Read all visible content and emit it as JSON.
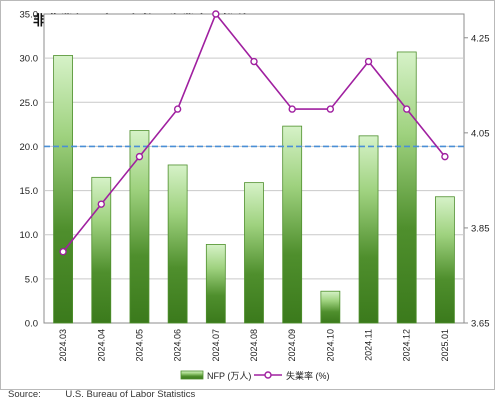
{
  "chart_data": {
    "type": "bar",
    "title": "非農業部門雇用者数と失業率の推移",
    "categories": [
      "2024.03",
      "2024.04",
      "2024.05",
      "2024.06",
      "2024.07",
      "2024.08",
      "2024.09",
      "2024.10",
      "2024.11",
      "2024.12",
      "2025.01"
    ],
    "series": [
      {
        "name": "NFP (万人)",
        "type": "bar",
        "axis": "left",
        "values": [
          30.3,
          16.5,
          21.8,
          17.9,
          8.9,
          15.9,
          22.3,
          3.6,
          21.2,
          30.7,
          14.3
        ]
      },
      {
        "name": "失業率 (%)",
        "type": "line",
        "axis": "right",
        "values": [
          3.8,
          3.9,
          4.0,
          4.1,
          4.3,
          4.2,
          4.1,
          4.1,
          4.2,
          4.1,
          4.0
        ]
      }
    ],
    "y_left": {
      "ylim": [
        0,
        35
      ],
      "ticks": [
        "0.0",
        "5.0",
        "10.0",
        "15.0",
        "20.0",
        "25.0",
        "30.0",
        "35.0"
      ]
    },
    "y_right": {
      "ylim": [
        3.65,
        4.3
      ],
      "ticks": [
        "3.65",
        "3.85",
        "4.05",
        "4.25"
      ]
    },
    "reference_line": {
      "axis": "left",
      "value": 20.0,
      "style": "dashed"
    },
    "grid": true,
    "legend_position": "bottom-center",
    "colors": {
      "bar_dark": "#3f7a1f",
      "bar_light": "#cfeec0",
      "bar_edge": "#4e8f2c",
      "line": "#a020a0",
      "marker_fill": "#ffffff",
      "reference": "#4a8fd6",
      "grid": "#c9c9c9"
    }
  },
  "source": {
    "label": "Source:",
    "text": "U.S. Bureau of Labor Statistics"
  }
}
